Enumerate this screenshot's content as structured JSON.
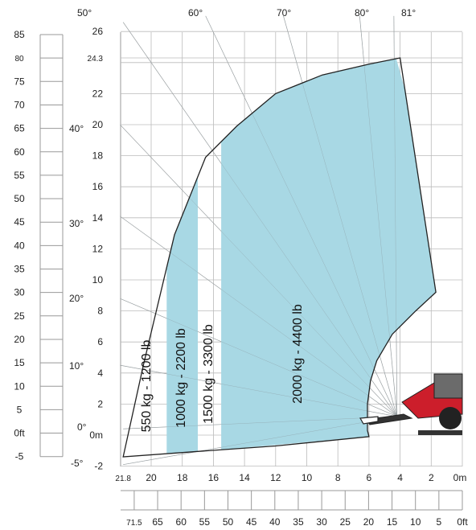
{
  "chart_data": {
    "type": "area",
    "title": "",
    "x_unit": "m",
    "y_unit": "m",
    "x_range": [
      0,
      21.8
    ],
    "y_range": [
      -2,
      26
    ],
    "x_ticks": [
      "0m",
      "2",
      "4",
      "6",
      "8",
      "10",
      "12",
      "14",
      "16",
      "18",
      "20",
      "21.8"
    ],
    "y_ticks": [
      "-2",
      "0m",
      "2",
      "4",
      "6",
      "8",
      "10",
      "12",
      "14",
      "16",
      "18",
      "20",
      "22",
      "24.3",
      "26"
    ],
    "feet_x_ticks": [
      "0ft",
      "5",
      "10",
      "15",
      "20",
      "25",
      "30",
      "35",
      "40",
      "45",
      "50",
      "55",
      "60",
      "65",
      "71.5"
    ],
    "feet_y_ticks": [
      "-5",
      "0ft",
      "5",
      "10",
      "15",
      "20",
      "25",
      "30",
      "35",
      "40",
      "45",
      "50",
      "55",
      "60",
      "65",
      "70",
      "75",
      "80",
      "85"
    ],
    "boom_angles": [
      "-5°",
      "0°",
      "10°",
      "20°",
      "30°",
      "40°",
      "50°",
      "60°",
      "70°",
      "80°",
      "81°"
    ],
    "max_height_m": 24.3,
    "max_reach_m": 21.8,
    "load_zones": [
      {
        "label": "550 kg - 1200 lb",
        "kg": 550,
        "lb": 1200,
        "reach_m": [
          19.0,
          21.8
        ],
        "shaded": false
      },
      {
        "label": "1000 kg - 2200 lb",
        "kg": 1000,
        "lb": 2200,
        "reach_m": [
          17.0,
          19.0
        ],
        "shaded": true
      },
      {
        "label": "1500 kg - 3300 lb",
        "kg": 1500,
        "lb": 3300,
        "reach_m": [
          15.5,
          17.0
        ],
        "shaded": false
      },
      {
        "label": "2000 kg - 4400 lb",
        "kg": 2000,
        "lb": 4400,
        "reach_m": [
          2.0,
          15.5
        ],
        "shaded": true
      }
    ],
    "zone_color": "#a8d8e4",
    "grid": true
  }
}
